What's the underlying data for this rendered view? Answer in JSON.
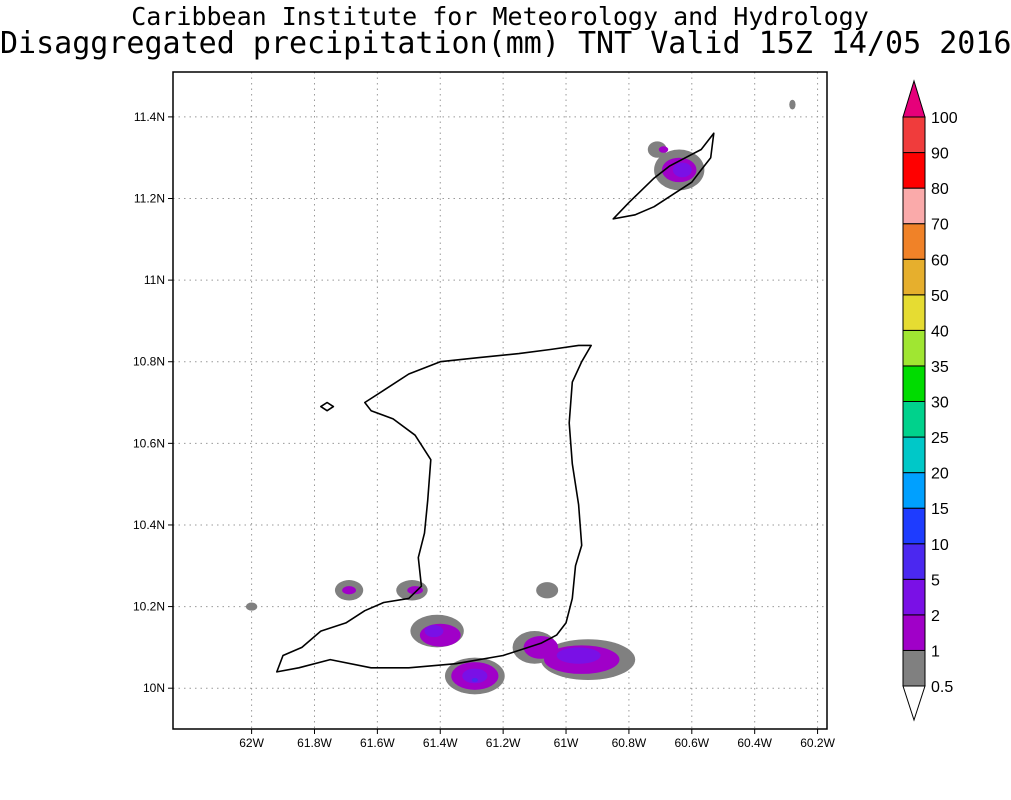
{
  "title": {
    "line1": "Caribbean Institute for Meteorology and Hydrology",
    "line2": "Disaggregated precipitation(mm) TNT Valid 15Z 14/05 2016"
  },
  "map": {
    "lon_range": [
      -62.25,
      -60.17
    ],
    "lat_range": [
      9.9,
      11.51
    ],
    "x_ticks": [
      {
        "value": -62.0,
        "label": "62W"
      },
      {
        "value": -61.8,
        "label": "61.8W"
      },
      {
        "value": -61.6,
        "label": "61.6W"
      },
      {
        "value": -61.4,
        "label": "61.4W"
      },
      {
        "value": -61.2,
        "label": "61.2W"
      },
      {
        "value": -61.0,
        "label": "61W"
      },
      {
        "value": -60.8,
        "label": "60.8W"
      },
      {
        "value": -60.6,
        "label": "60.6W"
      },
      {
        "value": -60.4,
        "label": "60.4W"
      },
      {
        "value": -60.2,
        "label": "60.2W"
      }
    ],
    "y_ticks": [
      {
        "value": 10.0,
        "label": "10N"
      },
      {
        "value": 10.2,
        "label": "10.2N"
      },
      {
        "value": 10.4,
        "label": "10.4N"
      },
      {
        "value": 10.6,
        "label": "10.6N"
      },
      {
        "value": 10.8,
        "label": "10.8N"
      },
      {
        "value": 11.0,
        "label": "11N"
      },
      {
        "value": 11.2,
        "label": "11.2N"
      },
      {
        "value": 11.4,
        "label": "11.4N"
      }
    ],
    "grid": "dotted"
  },
  "colorbar": {
    "levels": [
      {
        "label": "0.5",
        "color": "#ffffff"
      },
      {
        "label": "1",
        "color": "#808080"
      },
      {
        "label": "2",
        "color": "#a000c8"
      },
      {
        "label": "5",
        "color": "#7a10e6"
      },
      {
        "label": "10",
        "color": "#4b28f0"
      },
      {
        "label": "15",
        "color": "#1e3cff"
      },
      {
        "label": "20",
        "color": "#00a0ff"
      },
      {
        "label": "25",
        "color": "#00c8c8"
      },
      {
        "label": "30",
        "color": "#00d28c"
      },
      {
        "label": "35",
        "color": "#00dc00"
      },
      {
        "label": "40",
        "color": "#a0e632"
      },
      {
        "label": "50",
        "color": "#e6dc32"
      },
      {
        "label": "60",
        "color": "#e6af2d"
      },
      {
        "label": "70",
        "color": "#f08228"
      },
      {
        "label": "80",
        "color": "#faaaaa"
      },
      {
        "label": "90",
        "color": "#ff0000"
      },
      {
        "label": "100",
        "color": "#f03c3c"
      }
    ],
    "top_triangle_color": "#e6007a",
    "bottom_triangle_color": "#ffffff"
  },
  "precipitation": [
    {
      "lon": -61.69,
      "lat": 10.24,
      "rx": 0.045,
      "ry": 0.025,
      "level": "1"
    },
    {
      "lon": -61.69,
      "lat": 10.24,
      "rx": 0.022,
      "ry": 0.01,
      "level": "2"
    },
    {
      "lon": -61.49,
      "lat": 10.24,
      "rx": 0.05,
      "ry": 0.025,
      "level": "1"
    },
    {
      "lon": -61.48,
      "lat": 10.24,
      "rx": 0.025,
      "ry": 0.01,
      "level": "2"
    },
    {
      "lon": -61.41,
      "lat": 10.14,
      "rx": 0.085,
      "ry": 0.04,
      "level": "1"
    },
    {
      "lon": -61.4,
      "lat": 10.13,
      "rx": 0.065,
      "ry": 0.028,
      "level": "2"
    },
    {
      "lon": -61.42,
      "lat": 10.14,
      "rx": 0.03,
      "ry": 0.015,
      "level": "5"
    },
    {
      "lon": -61.29,
      "lat": 10.03,
      "rx": 0.095,
      "ry": 0.045,
      "level": "1"
    },
    {
      "lon": -61.29,
      "lat": 10.03,
      "rx": 0.075,
      "ry": 0.034,
      "level": "2"
    },
    {
      "lon": -61.29,
      "lat": 10.03,
      "rx": 0.04,
      "ry": 0.018,
      "level": "5"
    },
    {
      "lon": -61.29,
      "lat": 10.02,
      "rx": 0.01,
      "ry": 0.005,
      "level": "10"
    },
    {
      "lon": -61.06,
      "lat": 10.24,
      "rx": 0.035,
      "ry": 0.02,
      "level": "1"
    },
    {
      "lon": -61.1,
      "lat": 10.1,
      "rx": 0.07,
      "ry": 0.04,
      "level": "1"
    },
    {
      "lon": -60.93,
      "lat": 10.07,
      "rx": 0.15,
      "ry": 0.05,
      "level": "1"
    },
    {
      "lon": -61.08,
      "lat": 10.1,
      "rx": 0.055,
      "ry": 0.028,
      "level": "2"
    },
    {
      "lon": -60.95,
      "lat": 10.07,
      "rx": 0.12,
      "ry": 0.035,
      "level": "2"
    },
    {
      "lon": -60.96,
      "lat": 10.08,
      "rx": 0.07,
      "ry": 0.02,
      "level": "5"
    },
    {
      "lon": -62.0,
      "lat": 10.2,
      "rx": 0.018,
      "ry": 0.01,
      "level": "1"
    },
    {
      "lon": -60.71,
      "lat": 11.32,
      "rx": 0.03,
      "ry": 0.02,
      "level": "1"
    },
    {
      "lon": -60.69,
      "lat": 11.32,
      "rx": 0.015,
      "ry": 0.008,
      "level": "2"
    },
    {
      "lon": -60.64,
      "lat": 11.27,
      "rx": 0.08,
      "ry": 0.05,
      "level": "1"
    },
    {
      "lon": -60.64,
      "lat": 11.27,
      "rx": 0.055,
      "ry": 0.03,
      "level": "2"
    },
    {
      "lon": -60.63,
      "lat": 11.27,
      "rx": 0.03,
      "ry": 0.018,
      "level": "5"
    },
    {
      "lon": -60.28,
      "lat": 11.43,
      "rx": 0.01,
      "ry": 0.012,
      "level": "1"
    }
  ],
  "coastlines": {
    "trinidad": [
      [
        -61.92,
        10.04
      ],
      [
        -61.9,
        10.08
      ],
      [
        -61.84,
        10.1
      ],
      [
        -61.78,
        10.14
      ],
      [
        -61.7,
        10.16
      ],
      [
        -61.64,
        10.19
      ],
      [
        -61.58,
        10.21
      ],
      [
        -61.5,
        10.22
      ],
      [
        -61.46,
        10.25
      ],
      [
        -61.47,
        10.32
      ],
      [
        -61.45,
        10.38
      ],
      [
        -61.44,
        10.46
      ],
      [
        -61.43,
        10.56
      ],
      [
        -61.48,
        10.62
      ],
      [
        -61.55,
        10.66
      ],
      [
        -61.62,
        10.68
      ],
      [
        -61.64,
        10.7
      ],
      [
        -61.58,
        10.73
      ],
      [
        -61.5,
        10.77
      ],
      [
        -61.4,
        10.8
      ],
      [
        -61.28,
        10.81
      ],
      [
        -61.15,
        10.82
      ],
      [
        -61.05,
        10.83
      ],
      [
        -60.96,
        10.84
      ],
      [
        -60.92,
        10.84
      ],
      [
        -60.95,
        10.8
      ],
      [
        -60.98,
        10.75
      ],
      [
        -60.99,
        10.65
      ],
      [
        -60.98,
        10.55
      ],
      [
        -60.96,
        10.45
      ],
      [
        -60.95,
        10.35
      ],
      [
        -60.97,
        10.3
      ],
      [
        -60.98,
        10.22
      ],
      [
        -61.0,
        10.16
      ],
      [
        -61.03,
        10.13
      ],
      [
        -61.08,
        10.11
      ],
      [
        -61.2,
        10.08
      ],
      [
        -61.35,
        10.06
      ],
      [
        -61.5,
        10.05
      ],
      [
        -61.62,
        10.05
      ],
      [
        -61.75,
        10.07
      ],
      [
        -61.85,
        10.05
      ],
      [
        -61.92,
        10.04
      ]
    ],
    "tobago": [
      [
        -60.85,
        11.15
      ],
      [
        -60.8,
        11.19
      ],
      [
        -60.76,
        11.22
      ],
      [
        -60.72,
        11.25
      ],
      [
        -60.67,
        11.28
      ],
      [
        -60.62,
        11.3
      ],
      [
        -60.57,
        11.32
      ],
      [
        -60.53,
        11.36
      ],
      [
        -60.54,
        11.3
      ],
      [
        -60.57,
        11.27
      ],
      [
        -60.6,
        11.24
      ],
      [
        -60.66,
        11.21
      ],
      [
        -60.72,
        11.18
      ],
      [
        -60.78,
        11.16
      ],
      [
        -60.85,
        11.15
      ]
    ],
    "chacachacare": [
      [
        -61.78,
        10.69
      ],
      [
        -61.76,
        10.7
      ],
      [
        -61.74,
        10.69
      ],
      [
        -61.76,
        10.68
      ],
      [
        -61.78,
        10.69
      ]
    ]
  }
}
